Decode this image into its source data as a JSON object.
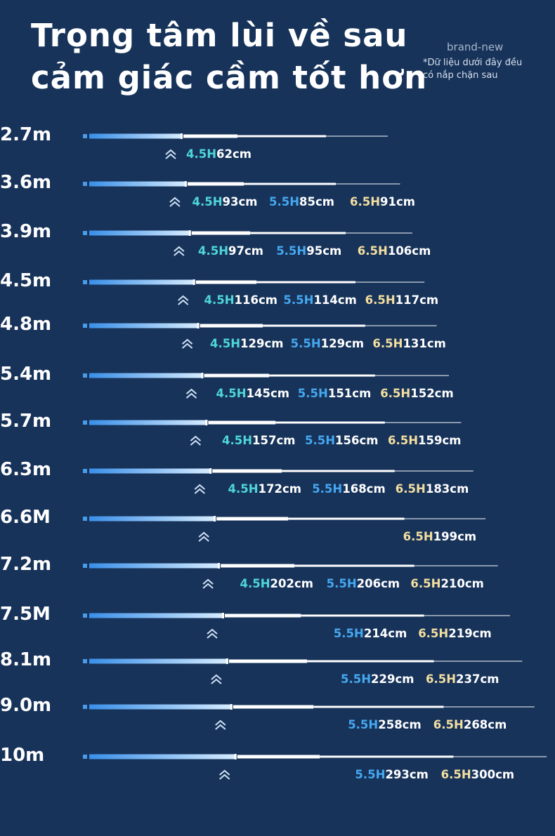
{
  "header": {
    "title_lines": [
      "Trọng tâm lùi về sau",
      "cảm giác cầm tốt hơn"
    ],
    "brand": "brand-new",
    "note_lines": [
      "*Dữ liệu dưới đây đều",
      "có nắp chặn sau"
    ]
  },
  "rows": [
    {
      "length": "2.7m",
      "entries": [
        {
          "grade": "4.5H",
          "balance": "62cm"
        },
        null,
        null
      ]
    },
    {
      "length": "3.6m",
      "entries": [
        {
          "grade": "4.5H",
          "balance": "93cm"
        },
        {
          "grade": "5.5H",
          "balance": "85cm"
        },
        {
          "grade": "6.5H",
          "balance": "91cm"
        }
      ]
    },
    {
      "length": "3.9m",
      "entries": [
        {
          "grade": "4.5H",
          "balance": "97cm"
        },
        {
          "grade": "5.5H",
          "balance": "95cm"
        },
        {
          "grade": "6.5H",
          "balance": "106cm"
        }
      ]
    },
    {
      "length": "4.5m",
      "entries": [
        {
          "grade": "4.5H",
          "balance": "116cm"
        },
        {
          "grade": "5.5H",
          "balance": "114cm"
        },
        {
          "grade": "6.5H",
          "balance": "117cm"
        }
      ]
    },
    {
      "length": "4.8m",
      "entries": [
        {
          "grade": "4.5H",
          "balance": "129cm"
        },
        {
          "grade": "5.5H",
          "balance": "129cm"
        },
        {
          "grade": "6.5H",
          "balance": "131cm"
        }
      ]
    },
    {
      "length": "5.4m",
      "entries": [
        {
          "grade": "4.5H",
          "balance": "145cm"
        },
        {
          "grade": "5.5H",
          "balance": "151cm"
        },
        {
          "grade": "6.5H",
          "balance": "152cm"
        }
      ]
    },
    {
      "length": "5.7m",
      "entries": [
        {
          "grade": "4.5H",
          "balance": "157cm"
        },
        {
          "grade": "5.5H",
          "balance": "156cm"
        },
        {
          "grade": "6.5H",
          "balance": "159cm"
        }
      ]
    },
    {
      "length": "6.3m",
      "entries": [
        {
          "grade": "4.5H",
          "balance": "172cm"
        },
        {
          "grade": "5.5H",
          "balance": "168cm"
        },
        {
          "grade": "6.5H",
          "balance": "183cm"
        }
      ]
    },
    {
      "length": "6.6M",
      "entries": [
        null,
        null,
        {
          "grade": "6.5H",
          "balance": "199cm"
        }
      ]
    },
    {
      "length": "7.2m",
      "entries": [
        {
          "grade": "4.5H",
          "balance": "202cm"
        },
        {
          "grade": "5.5H",
          "balance": "206cm"
        },
        {
          "grade": "6.5H",
          "balance": "210cm"
        }
      ]
    },
    {
      "length": "7.5M",
      "entries": [
        null,
        {
          "grade": "5.5H",
          "balance": "214cm"
        },
        {
          "grade": "6.5H",
          "balance": "219cm"
        }
      ]
    },
    {
      "length": "8.1m",
      "entries": [
        null,
        {
          "grade": "5.5H",
          "balance": "229cm"
        },
        {
          "grade": "6.5H",
          "balance": "237cm"
        }
      ]
    },
    {
      "length": "9.0m",
      "entries": [
        null,
        {
          "grade": "5.5H",
          "balance": "258cm"
        },
        {
          "grade": "6.5H",
          "balance": "268cm"
        }
      ]
    },
    {
      "length": "10m",
      "entries": [
        null,
        {
          "grade": "5.5H",
          "balance": "293cm"
        },
        {
          "grade": "6.5H",
          "balance": "300cm"
        }
      ]
    }
  ]
}
